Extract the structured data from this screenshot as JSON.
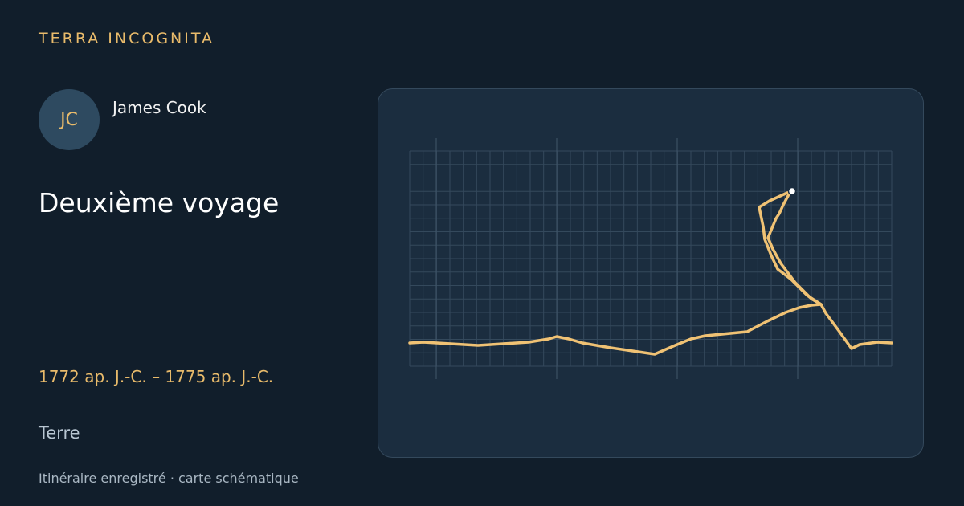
{
  "brand": "TERRA INCOGNITA",
  "person": {
    "initials": "JC",
    "name": "James Cook"
  },
  "title": "Deuxième voyage",
  "dates": "1772 ap. J.-C. – 1775 ap. J.-C.",
  "body": "Terre",
  "footer": "Itinéraire enregistré · carte schématique"
}
